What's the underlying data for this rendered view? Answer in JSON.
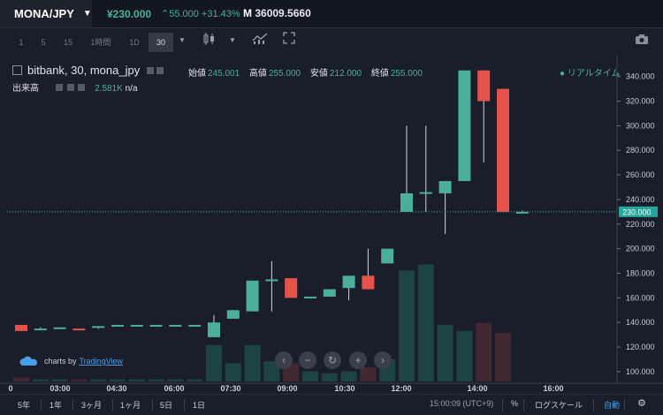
{
  "header": {
    "pair": "MONA/JPY",
    "price": "¥230.000",
    "change": "⌃55.000 +31.43%",
    "volume": "36009.5660"
  },
  "toolbar": {
    "timeframes": [
      "1",
      "5",
      "15",
      "1時間",
      "1D",
      "30"
    ],
    "active_timeframe": "30"
  },
  "legend": {
    "title": "bitbank, 30, mona_jpy",
    "open_label": "始値",
    "open": "245.001",
    "high_label": "高値",
    "high": "255.000",
    "low_label": "安値",
    "low": "212.000",
    "close_label": "終値",
    "close": "255.000",
    "volume_label": "出来高",
    "volume_value": "2.581K",
    "volume_extra": "n/a",
    "realtime": "● リアルタイム"
  },
  "watermark": {
    "prefix": "charts by",
    "link": "TradingView"
  },
  "bottombar": {
    "ranges": [
      "5年",
      "1年",
      "3ヶ月",
      "1ヶ月",
      "5日",
      "1日"
    ],
    "time": "15:00:09 (UTC+9)",
    "percent": "%",
    "log": "ログスケール",
    "auto": "自動"
  },
  "colors": {
    "up": "#4caf9a",
    "down": "#e5534b",
    "bg": "#1a1e2b"
  },
  "chart_data": {
    "type": "candlestick",
    "x_ticks": [
      "0",
      "03:00",
      "04:30",
      "06:00",
      "07:30",
      "09:00",
      "10:30",
      "12:00",
      "14:00",
      "16:00"
    ],
    "y_ticks": [
      "100.000",
      "120.000",
      "140.000",
      "160.000",
      "180.000",
      "200.000",
      "220.000",
      "240.000",
      "260.000",
      "280.000",
      "300.000",
      "320.000",
      "340.000"
    ],
    "ylim": [
      92,
      352
    ],
    "last_price": "230.000",
    "candles": [
      {
        "o": 138,
        "h": 138,
        "l": 133,
        "c": 133,
        "v": 2
      },
      {
        "o": 135,
        "h": 136,
        "l": 135,
        "c": 135,
        "v": 1
      },
      {
        "o": 135,
        "h": 136,
        "l": 135,
        "c": 136,
        "v": 1
      },
      {
        "o": 135,
        "h": 135,
        "l": 134,
        "c": 134,
        "v": 1
      },
      {
        "o": 136,
        "h": 137,
        "l": 135,
        "c": 137,
        "v": 1
      },
      {
        "o": 137,
        "h": 138,
        "l": 137,
        "c": 138,
        "v": 1
      },
      {
        "o": 137,
        "h": 138,
        "l": 137,
        "c": 138,
        "v": 1
      },
      {
        "o": 138,
        "h": 138,
        "l": 137,
        "c": 138,
        "v": 1
      },
      {
        "o": 138,
        "h": 138,
        "l": 137,
        "c": 138,
        "v": 1
      },
      {
        "o": 138,
        "h": 138,
        "l": 137,
        "c": 138,
        "v": 1
      },
      {
        "o": 128,
        "h": 146,
        "l": 128,
        "c": 140,
        "v": 18
      },
      {
        "o": 143,
        "h": 150,
        "l": 143,
        "c": 150,
        "v": 9
      },
      {
        "o": 149,
        "h": 174,
        "l": 149,
        "c": 174,
        "v": 18
      },
      {
        "o": 175,
        "h": 190,
        "l": 149,
        "c": 175,
        "v": 10
      },
      {
        "o": 176,
        "h": 176,
        "l": 160,
        "c": 160,
        "v": 9
      },
      {
        "o": 161,
        "h": 161,
        "l": 160,
        "c": 161,
        "v": 5
      },
      {
        "o": 161,
        "h": 167,
        "l": 161,
        "c": 167,
        "v": 4
      },
      {
        "o": 168,
        "h": 178,
        "l": 158,
        "c": 178,
        "v": 5
      },
      {
        "o": 178,
        "h": 200,
        "l": 167,
        "c": 167,
        "v": 7
      },
      {
        "o": 188,
        "h": 200,
        "l": 188,
        "c": 200,
        "v": 11
      },
      {
        "o": 230,
        "h": 300,
        "l": 230,
        "c": 245,
        "v": 55
      },
      {
        "o": 245,
        "h": 300,
        "l": 230,
        "c": 246,
        "v": 58
      },
      {
        "o": 245,
        "h": 255,
        "l": 212,
        "c": 255,
        "v": 28
      },
      {
        "o": 255,
        "h": 345,
        "l": 255,
        "c": 345,
        "v": 25
      },
      {
        "o": 345,
        "h": 345,
        "l": 270,
        "c": 320,
        "v": 29
      },
      {
        "o": 330,
        "h": 330,
        "l": 230,
        "c": 230,
        "v": 24
      },
      {
        "o": 230,
        "h": 231,
        "l": 229,
        "c": 230,
        "v": 0
      }
    ]
  }
}
